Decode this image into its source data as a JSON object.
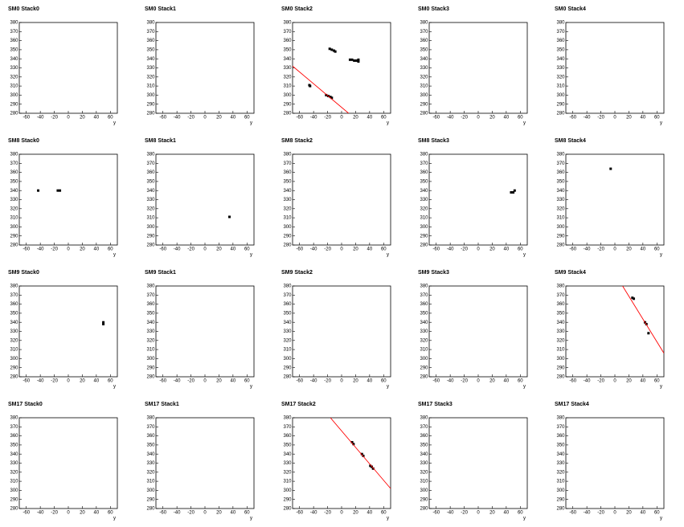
{
  "chart_data": [
    {
      "type": "scatter",
      "title": "SM0 Stack0",
      "xlabel": "y",
      "x": [],
      "y": [],
      "xlim": [
        -70,
        70
      ],
      "ylim": [
        280,
        380
      ],
      "xticks": [
        -60,
        -40,
        -20,
        0,
        20,
        40,
        60
      ],
      "yticks": [
        280,
        290,
        300,
        310,
        320,
        330,
        340,
        350,
        360,
        370,
        380
      ],
      "color": "#000000"
    },
    {
      "type": "scatter",
      "title": "SM0 Stack1",
      "xlabel": "y",
      "x": [],
      "y": [],
      "xlim": [
        -70,
        70
      ],
      "ylim": [
        280,
        380
      ],
      "xticks": [
        -60,
        -40,
        -20,
        0,
        20,
        40,
        60
      ],
      "yticks": [
        280,
        290,
        300,
        310,
        320,
        330,
        340,
        350,
        360,
        370,
        380
      ],
      "color": "#000000"
    },
    {
      "type": "scatter",
      "title": "SM0 Stack2",
      "xlabel": "y",
      "x": [
        -46,
        -45,
        -22,
        -19,
        -16,
        -14,
        -17,
        -14,
        -11,
        -9,
        12,
        15,
        18,
        21,
        24,
        24
      ],
      "y": [
        311,
        310,
        300,
        299,
        298,
        297,
        351,
        350,
        349,
        348,
        339,
        339,
        338,
        338,
        339,
        337
      ],
      "xlim": [
        -70,
        70
      ],
      "ylim": [
        280,
        380
      ],
      "xticks": [
        -60,
        -40,
        -20,
        0,
        20,
        40,
        60
      ],
      "yticks": [
        280,
        290,
        300,
        310,
        320,
        330,
        340,
        350,
        360,
        370,
        380
      ],
      "color": "#000000",
      "fit_x": [
        -70,
        10
      ],
      "fit_y": [
        332,
        280
      ],
      "fit_color": "#ff0000"
    },
    {
      "type": "scatter",
      "title": "SM0 Stack3",
      "xlabel": "y",
      "x": [],
      "y": [],
      "xlim": [
        -70,
        70
      ],
      "ylim": [
        280,
        380
      ],
      "xticks": [
        -60,
        -40,
        -20,
        0,
        20,
        40,
        60
      ],
      "yticks": [
        280,
        290,
        300,
        310,
        320,
        330,
        340,
        350,
        360,
        370,
        380
      ],
      "color": "#000000"
    },
    {
      "type": "scatter",
      "title": "SM0 Stack4",
      "xlabel": "y",
      "x": [],
      "y": [],
      "xlim": [
        -70,
        70
      ],
      "ylim": [
        280,
        380
      ],
      "xticks": [
        -60,
        -40,
        -20,
        0,
        20,
        40,
        60
      ],
      "yticks": [
        280,
        290,
        300,
        310,
        320,
        330,
        340,
        350,
        360,
        370,
        380
      ],
      "color": "#000000"
    },
    {
      "type": "scatter",
      "title": "SM8 Stack0",
      "xlabel": "y",
      "x": [
        -43,
        -15,
        -12
      ],
      "y": [
        340,
        340,
        340
      ],
      "xlim": [
        -70,
        70
      ],
      "ylim": [
        280,
        380
      ],
      "xticks": [
        -60,
        -40,
        -20,
        0,
        20,
        40,
        60
      ],
      "yticks": [
        280,
        290,
        300,
        310,
        320,
        330,
        340,
        350,
        360,
        370,
        380
      ],
      "color": "#000000"
    },
    {
      "type": "scatter",
      "title": "SM8 Stack1",
      "xlabel": "y",
      "x": [
        35
      ],
      "y": [
        311
      ],
      "xlim": [
        -70,
        70
      ],
      "ylim": [
        280,
        380
      ],
      "xticks": [
        -60,
        -40,
        -20,
        0,
        20,
        40,
        60
      ],
      "yticks": [
        280,
        290,
        300,
        310,
        320,
        330,
        340,
        350,
        360,
        370,
        380
      ],
      "color": "#000000"
    },
    {
      "type": "scatter",
      "title": "SM8 Stack2",
      "xlabel": "y",
      "x": [],
      "y": [],
      "xlim": [
        -70,
        70
      ],
      "ylim": [
        280,
        380
      ],
      "xticks": [
        -60,
        -40,
        -20,
        0,
        20,
        40,
        60
      ],
      "yticks": [
        280,
        290,
        300,
        310,
        320,
        330,
        340,
        350,
        360,
        370,
        380
      ],
      "color": "#000000"
    },
    {
      "type": "scatter",
      "title": "SM8 Stack3",
      "xlabel": "y",
      "x": [
        47,
        50,
        52
      ],
      "y": [
        338,
        338,
        340
      ],
      "xlim": [
        -70,
        70
      ],
      "ylim": [
        280,
        380
      ],
      "xticks": [
        -60,
        -40,
        -20,
        0,
        20,
        40,
        60
      ],
      "yticks": [
        280,
        290,
        300,
        310,
        320,
        330,
        340,
        350,
        360,
        370,
        380
      ],
      "color": "#000000"
    },
    {
      "type": "scatter",
      "title": "SM8 Stack4",
      "xlabel": "y",
      "x": [
        -6
      ],
      "y": [
        364
      ],
      "xlim": [
        -70,
        70
      ],
      "ylim": [
        280,
        380
      ],
      "xticks": [
        -60,
        -40,
        -20,
        0,
        20,
        40,
        60
      ],
      "yticks": [
        280,
        290,
        300,
        310,
        320,
        330,
        340,
        350,
        360,
        370,
        380
      ],
      "color": "#000000"
    },
    {
      "type": "scatter",
      "title": "SM9 Stack0",
      "xlabel": "y",
      "x": [
        50,
        50
      ],
      "y": [
        340,
        338
      ],
      "xlim": [
        -70,
        70
      ],
      "ylim": [
        280,
        380
      ],
      "xticks": [
        -60,
        -40,
        -20,
        0,
        20,
        40,
        60
      ],
      "yticks": [
        280,
        290,
        300,
        310,
        320,
        330,
        340,
        350,
        360,
        370,
        380
      ],
      "color": "#000000"
    },
    {
      "type": "scatter",
      "title": "SM9 Stack1",
      "xlabel": "y",
      "x": [],
      "y": [],
      "xlim": [
        -70,
        70
      ],
      "ylim": [
        280,
        380
      ],
      "xticks": [
        -60,
        -40,
        -20,
        0,
        20,
        40,
        60
      ],
      "yticks": [
        280,
        290,
        300,
        310,
        320,
        330,
        340,
        350,
        360,
        370,
        380
      ],
      "color": "#000000"
    },
    {
      "type": "scatter",
      "title": "SM9 Stack2",
      "xlabel": "y",
      "x": [],
      "y": [],
      "xlim": [
        -70,
        70
      ],
      "ylim": [
        280,
        380
      ],
      "xticks": [
        -60,
        -40,
        -20,
        0,
        20,
        40,
        60
      ],
      "yticks": [
        280,
        290,
        300,
        310,
        320,
        330,
        340,
        350,
        360,
        370,
        380
      ],
      "color": "#000000"
    },
    {
      "type": "scatter",
      "title": "SM9 Stack3",
      "xlabel": "y",
      "x": [],
      "y": [],
      "xlim": [
        -70,
        70
      ],
      "ylim": [
        280,
        380
      ],
      "xticks": [
        -60,
        -40,
        -20,
        0,
        20,
        40,
        60
      ],
      "yticks": [
        280,
        290,
        300,
        310,
        320,
        330,
        340,
        350,
        360,
        370,
        380
      ],
      "color": "#000000"
    },
    {
      "type": "scatter",
      "title": "SM9 Stack4",
      "xlabel": "y",
      "x": [
        25,
        27,
        43,
        45,
        48
      ],
      "y": [
        367,
        366,
        340,
        338,
        328
      ],
      "xlim": [
        -70,
        70
      ],
      "ylim": [
        280,
        380
      ],
      "xticks": [
        -60,
        -40,
        -20,
        0,
        20,
        40,
        60
      ],
      "yticks": [
        280,
        290,
        300,
        310,
        320,
        330,
        340,
        350,
        360,
        370,
        380
      ],
      "color": "#000000",
      "fit_x": [
        11,
        70
      ],
      "fit_y": [
        380,
        306
      ],
      "fit_color": "#ff0000"
    },
    {
      "type": "scatter",
      "title": "SM17 Stack0",
      "xlabel": "y",
      "x": [],
      "y": [],
      "xlim": [
        -70,
        70
      ],
      "ylim": [
        280,
        380
      ],
      "xticks": [
        -60,
        -40,
        -20,
        0,
        20,
        40,
        60
      ],
      "yticks": [
        280,
        290,
        300,
        310,
        320,
        330,
        340,
        350,
        360,
        370,
        380
      ],
      "color": "#000000"
    },
    {
      "type": "scatter",
      "title": "SM17 Stack1",
      "xlabel": "y",
      "x": [],
      "y": [],
      "xlim": [
        -70,
        70
      ],
      "ylim": [
        280,
        380
      ],
      "xticks": [
        -60,
        -40,
        -20,
        0,
        20,
        40,
        60
      ],
      "yticks": [
        280,
        290,
        300,
        310,
        320,
        330,
        340,
        350,
        360,
        370,
        380
      ],
      "color": "#000000"
    },
    {
      "type": "scatter",
      "title": "SM17 Stack2",
      "xlabel": "y",
      "x": [
        15,
        17,
        29,
        31,
        41,
        43,
        45
      ],
      "y": [
        353,
        351,
        340,
        338,
        327,
        326,
        324
      ],
      "xlim": [
        -70,
        70
      ],
      "ylim": [
        280,
        380
      ],
      "xticks": [
        -60,
        -40,
        -20,
        0,
        20,
        40,
        60
      ],
      "yticks": [
        280,
        290,
        300,
        310,
        320,
        330,
        340,
        350,
        360,
        370,
        380
      ],
      "color": "#000000",
      "fit_x": [
        -16,
        70
      ],
      "fit_y": [
        380,
        302
      ],
      "fit_color": "#ff0000"
    },
    {
      "type": "scatter",
      "title": "SM17 Stack3",
      "xlabel": "y",
      "x": [],
      "y": [],
      "xlim": [
        -70,
        70
      ],
      "ylim": [
        280,
        380
      ],
      "xticks": [
        -60,
        -40,
        -20,
        0,
        20,
        40,
        60
      ],
      "yticks": [
        280,
        290,
        300,
        310,
        320,
        330,
        340,
        350,
        360,
        370,
        380
      ],
      "color": "#000000"
    },
    {
      "type": "scatter",
      "title": "SM17 Stack4",
      "xlabel": "y",
      "x": [],
      "y": [],
      "xlim": [
        -70,
        70
      ],
      "ylim": [
        280,
        380
      ],
      "xticks": [
        -60,
        -40,
        -20,
        0,
        20,
        40,
        60
      ],
      "yticks": [
        280,
        290,
        300,
        310,
        320,
        330,
        340,
        350,
        360,
        370,
        380
      ],
      "color": "#000000"
    }
  ]
}
